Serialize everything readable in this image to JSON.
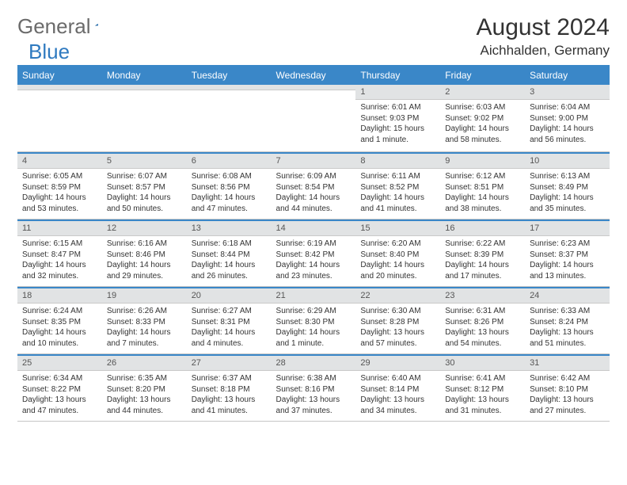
{
  "logo": {
    "text1": "General",
    "text2": "Blue"
  },
  "title": "August 2024",
  "location": "Aichhalden, Germany",
  "weekdays": [
    "Sunday",
    "Monday",
    "Tuesday",
    "Wednesday",
    "Thursday",
    "Friday",
    "Saturday"
  ],
  "colors": {
    "header_bg": "#3a87c8",
    "header_text": "#ffffff",
    "daynum_bg": "#e1e3e4",
    "border": "#c6c6c6",
    "text": "#333333"
  },
  "weeks": [
    [
      {
        "n": "",
        "sr": "",
        "ss": "",
        "dl": ""
      },
      {
        "n": "",
        "sr": "",
        "ss": "",
        "dl": ""
      },
      {
        "n": "",
        "sr": "",
        "ss": "",
        "dl": ""
      },
      {
        "n": "",
        "sr": "",
        "ss": "",
        "dl": ""
      },
      {
        "n": "1",
        "sr": "Sunrise: 6:01 AM",
        "ss": "Sunset: 9:03 PM",
        "dl": "Daylight: 15 hours and 1 minute."
      },
      {
        "n": "2",
        "sr": "Sunrise: 6:03 AM",
        "ss": "Sunset: 9:02 PM",
        "dl": "Daylight: 14 hours and 58 minutes."
      },
      {
        "n": "3",
        "sr": "Sunrise: 6:04 AM",
        "ss": "Sunset: 9:00 PM",
        "dl": "Daylight: 14 hours and 56 minutes."
      }
    ],
    [
      {
        "n": "4",
        "sr": "Sunrise: 6:05 AM",
        "ss": "Sunset: 8:59 PM",
        "dl": "Daylight: 14 hours and 53 minutes."
      },
      {
        "n": "5",
        "sr": "Sunrise: 6:07 AM",
        "ss": "Sunset: 8:57 PM",
        "dl": "Daylight: 14 hours and 50 minutes."
      },
      {
        "n": "6",
        "sr": "Sunrise: 6:08 AM",
        "ss": "Sunset: 8:56 PM",
        "dl": "Daylight: 14 hours and 47 minutes."
      },
      {
        "n": "7",
        "sr": "Sunrise: 6:09 AM",
        "ss": "Sunset: 8:54 PM",
        "dl": "Daylight: 14 hours and 44 minutes."
      },
      {
        "n": "8",
        "sr": "Sunrise: 6:11 AM",
        "ss": "Sunset: 8:52 PM",
        "dl": "Daylight: 14 hours and 41 minutes."
      },
      {
        "n": "9",
        "sr": "Sunrise: 6:12 AM",
        "ss": "Sunset: 8:51 PM",
        "dl": "Daylight: 14 hours and 38 minutes."
      },
      {
        "n": "10",
        "sr": "Sunrise: 6:13 AM",
        "ss": "Sunset: 8:49 PM",
        "dl": "Daylight: 14 hours and 35 minutes."
      }
    ],
    [
      {
        "n": "11",
        "sr": "Sunrise: 6:15 AM",
        "ss": "Sunset: 8:47 PM",
        "dl": "Daylight: 14 hours and 32 minutes."
      },
      {
        "n": "12",
        "sr": "Sunrise: 6:16 AM",
        "ss": "Sunset: 8:46 PM",
        "dl": "Daylight: 14 hours and 29 minutes."
      },
      {
        "n": "13",
        "sr": "Sunrise: 6:18 AM",
        "ss": "Sunset: 8:44 PM",
        "dl": "Daylight: 14 hours and 26 minutes."
      },
      {
        "n": "14",
        "sr": "Sunrise: 6:19 AM",
        "ss": "Sunset: 8:42 PM",
        "dl": "Daylight: 14 hours and 23 minutes."
      },
      {
        "n": "15",
        "sr": "Sunrise: 6:20 AM",
        "ss": "Sunset: 8:40 PM",
        "dl": "Daylight: 14 hours and 20 minutes."
      },
      {
        "n": "16",
        "sr": "Sunrise: 6:22 AM",
        "ss": "Sunset: 8:39 PM",
        "dl": "Daylight: 14 hours and 17 minutes."
      },
      {
        "n": "17",
        "sr": "Sunrise: 6:23 AM",
        "ss": "Sunset: 8:37 PM",
        "dl": "Daylight: 14 hours and 13 minutes."
      }
    ],
    [
      {
        "n": "18",
        "sr": "Sunrise: 6:24 AM",
        "ss": "Sunset: 8:35 PM",
        "dl": "Daylight: 14 hours and 10 minutes."
      },
      {
        "n": "19",
        "sr": "Sunrise: 6:26 AM",
        "ss": "Sunset: 8:33 PM",
        "dl": "Daylight: 14 hours and 7 minutes."
      },
      {
        "n": "20",
        "sr": "Sunrise: 6:27 AM",
        "ss": "Sunset: 8:31 PM",
        "dl": "Daylight: 14 hours and 4 minutes."
      },
      {
        "n": "21",
        "sr": "Sunrise: 6:29 AM",
        "ss": "Sunset: 8:30 PM",
        "dl": "Daylight: 14 hours and 1 minute."
      },
      {
        "n": "22",
        "sr": "Sunrise: 6:30 AM",
        "ss": "Sunset: 8:28 PM",
        "dl": "Daylight: 13 hours and 57 minutes."
      },
      {
        "n": "23",
        "sr": "Sunrise: 6:31 AM",
        "ss": "Sunset: 8:26 PM",
        "dl": "Daylight: 13 hours and 54 minutes."
      },
      {
        "n": "24",
        "sr": "Sunrise: 6:33 AM",
        "ss": "Sunset: 8:24 PM",
        "dl": "Daylight: 13 hours and 51 minutes."
      }
    ],
    [
      {
        "n": "25",
        "sr": "Sunrise: 6:34 AM",
        "ss": "Sunset: 8:22 PM",
        "dl": "Daylight: 13 hours and 47 minutes."
      },
      {
        "n": "26",
        "sr": "Sunrise: 6:35 AM",
        "ss": "Sunset: 8:20 PM",
        "dl": "Daylight: 13 hours and 44 minutes."
      },
      {
        "n": "27",
        "sr": "Sunrise: 6:37 AM",
        "ss": "Sunset: 8:18 PM",
        "dl": "Daylight: 13 hours and 41 minutes."
      },
      {
        "n": "28",
        "sr": "Sunrise: 6:38 AM",
        "ss": "Sunset: 8:16 PM",
        "dl": "Daylight: 13 hours and 37 minutes."
      },
      {
        "n": "29",
        "sr": "Sunrise: 6:40 AM",
        "ss": "Sunset: 8:14 PM",
        "dl": "Daylight: 13 hours and 34 minutes."
      },
      {
        "n": "30",
        "sr": "Sunrise: 6:41 AM",
        "ss": "Sunset: 8:12 PM",
        "dl": "Daylight: 13 hours and 31 minutes."
      },
      {
        "n": "31",
        "sr": "Sunrise: 6:42 AM",
        "ss": "Sunset: 8:10 PM",
        "dl": "Daylight: 13 hours and 27 minutes."
      }
    ]
  ]
}
